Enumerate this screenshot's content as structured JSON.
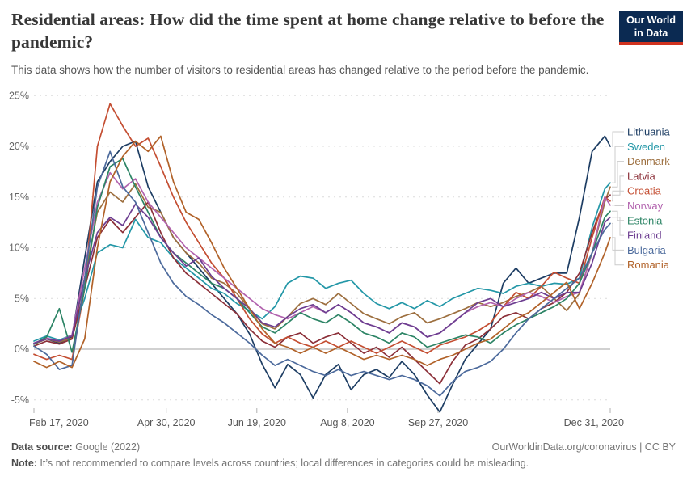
{
  "header": {
    "title": "Residential areas: How did the time spent at home change relative to before the pandemic?",
    "subtitle": "This data shows how the number of visitors to residential areas has changed relative to the period before the pandemic.",
    "logo_line1": "Our World",
    "logo_line2": "in Data",
    "logo_bg_color": "#0b2a52",
    "logo_stripe_color": "#d0321f"
  },
  "chart_data": {
    "type": "line",
    "title": "Residential areas: How did the time spent at home change relative to before the pandemic?",
    "xlabel": "",
    "ylabel": "",
    "y_unit": "%",
    "ylim": [
      -7,
      26
    ],
    "grid": "dashed horizontal gridlines, solid zero line",
    "legend_position": "right, ordered by final value, colored text with gray connector elbows",
    "y_ticks": [
      -5,
      0,
      5,
      10,
      15,
      20,
      25
    ],
    "x_ticks": [
      {
        "label": "Feb 17, 2020",
        "day": 0,
        "align": "start"
      },
      {
        "label": "Apr 30, 2020",
        "day": 73,
        "align": "middle"
      },
      {
        "label": "Jun 19, 2020",
        "day": 123,
        "align": "middle"
      },
      {
        "label": "Aug 8, 2020",
        "day": 173,
        "align": "middle"
      },
      {
        "label": "Sep 27, 2020",
        "day": 223,
        "align": "middle"
      },
      {
        "label": "Dec 31, 2020",
        "day": 318,
        "align": "end"
      }
    ],
    "x_days_since_feb17_2020": [
      0,
      7,
      14,
      21,
      28,
      35,
      42,
      49,
      56,
      63,
      70,
      77,
      84,
      91,
      98,
      105,
      112,
      119,
      126,
      133,
      140,
      147,
      154,
      161,
      168,
      175,
      182,
      189,
      196,
      203,
      210,
      217,
      224,
      231,
      238,
      245,
      252,
      259,
      266,
      273,
      280,
      287,
      294,
      301,
      308,
      315,
      318
    ],
    "series": [
      {
        "name": "Lithuania",
        "color": "#1D3D63",
        "values": [
          0.5,
          1.0,
          0.6,
          1.2,
          9.0,
          16.5,
          18.5,
          20.0,
          20.5,
          16.0,
          13.5,
          11.0,
          9.5,
          8.0,
          6.5,
          5.0,
          3.5,
          1.5,
          -1.5,
          -3.8,
          -1.5,
          -2.5,
          -4.8,
          -2.5,
          -1.5,
          -4.0,
          -2.5,
          -2.0,
          -2.8,
          -1.2,
          -2.5,
          -4.5,
          -6.2,
          -3.5,
          -1.0,
          0.5,
          2.0,
          6.5,
          8.0,
          6.5,
          7.0,
          7.5,
          7.5,
          13.0,
          19.5,
          21.0,
          20.0
        ]
      },
      {
        "name": "Sweden",
        "color": "#2397A7",
        "values": [
          0.8,
          1.3,
          0.9,
          1.4,
          5.0,
          9.5,
          10.3,
          10.0,
          12.8,
          11.0,
          10.5,
          9.0,
          8.0,
          7.0,
          6.0,
          5.5,
          4.5,
          3.8,
          3.0,
          4.2,
          6.5,
          7.2,
          7.0,
          6.0,
          6.5,
          6.8,
          5.5,
          4.5,
          4.0,
          4.6,
          4.0,
          4.8,
          4.2,
          5.0,
          5.5,
          6.0,
          5.8,
          5.5,
          6.2,
          6.5,
          6.2,
          6.5,
          6.4,
          7.0,
          12.0,
          15.8,
          16.4
        ]
      },
      {
        "name": "Denmark",
        "color": "#9D6F3F",
        "values": [
          0.5,
          1.0,
          0.7,
          1.1,
          7.0,
          13.5,
          15.5,
          14.5,
          16.3,
          14.0,
          13.5,
          11.0,
          9.5,
          8.5,
          7.0,
          6.5,
          5.5,
          4.0,
          2.5,
          2.0,
          3.2,
          4.5,
          5.0,
          4.4,
          5.5,
          4.5,
          3.5,
          3.0,
          2.5,
          3.2,
          3.6,
          2.6,
          3.0,
          3.5,
          4.0,
          4.6,
          4.2,
          4.6,
          5.2,
          5.6,
          6.2,
          5.0,
          3.8,
          5.5,
          9.5,
          14.5,
          16.0
        ]
      },
      {
        "name": "Latvia",
        "color": "#8C3039",
        "values": [
          0.3,
          0.8,
          0.5,
          1.0,
          6.0,
          11.0,
          12.8,
          11.5,
          13.0,
          14.5,
          11.5,
          9.0,
          7.5,
          6.5,
          5.5,
          4.5,
          3.5,
          2.0,
          0.8,
          0.2,
          1.2,
          1.6,
          0.6,
          1.2,
          1.6,
          0.6,
          -0.4,
          0.2,
          -0.8,
          0.2,
          -1.0,
          -2.2,
          -3.4,
          -1.2,
          0.4,
          1.0,
          2.0,
          3.2,
          3.6,
          3.0,
          4.0,
          4.6,
          5.6,
          7.5,
          11.5,
          14.8,
          15.2
        ]
      },
      {
        "name": "Croatia",
        "color": "#C44E32",
        "values": [
          -0.5,
          -1.0,
          -0.6,
          -1.0,
          6.0,
          20.0,
          24.2,
          22.0,
          20.0,
          20.8,
          18.0,
          15.0,
          12.5,
          10.5,
          8.5,
          7.0,
          5.0,
          3.0,
          1.5,
          0.6,
          1.2,
          0.6,
          0.2,
          0.8,
          0.2,
          0.8,
          0.2,
          -0.4,
          0.2,
          0.8,
          0.2,
          -0.4,
          0.4,
          0.8,
          1.2,
          1.8,
          2.6,
          4.2,
          5.6,
          5.0,
          6.2,
          7.6,
          7.0,
          6.5,
          11.0,
          15.0,
          14.6
        ]
      },
      {
        "name": "Norway",
        "color": "#B263AE",
        "values": [
          0.6,
          1.1,
          0.8,
          1.4,
          8.0,
          14.5,
          17.4,
          15.8,
          16.8,
          14.5,
          13.0,
          11.5,
          10.0,
          9.0,
          8.0,
          7.0,
          6.0,
          5.0,
          4.0,
          3.4,
          3.0,
          3.6,
          4.2,
          3.6,
          4.4,
          3.6,
          2.6,
          2.2,
          1.6,
          2.6,
          2.2,
          1.2,
          1.6,
          2.6,
          3.6,
          4.2,
          4.6,
          4.2,
          5.0,
          5.6,
          5.2,
          4.6,
          5.2,
          5.6,
          9.5,
          15.0,
          14.2
        ]
      },
      {
        "name": "Estonia",
        "color": "#2C8465",
        "values": [
          0.5,
          1.2,
          4.0,
          -0.3,
          6.0,
          14.0,
          18.0,
          18.8,
          16.0,
          13.5,
          11.0,
          9.5,
          8.5,
          7.5,
          6.5,
          6.0,
          5.0,
          3.6,
          2.2,
          1.6,
          2.6,
          3.6,
          3.0,
          2.6,
          3.4,
          2.6,
          1.6,
          1.2,
          0.6,
          1.6,
          1.2,
          0.2,
          0.6,
          1.0,
          1.4,
          1.2,
          0.6,
          1.6,
          2.4,
          3.0,
          3.6,
          4.2,
          5.0,
          6.5,
          9.5,
          13.0,
          13.6
        ]
      },
      {
        "name": "Finland",
        "color": "#6D3E91",
        "values": [
          0.6,
          1.0,
          0.8,
          1.3,
          7.0,
          11.5,
          13.0,
          12.2,
          14.3,
          13.0,
          11.0,
          9.5,
          8.2,
          9.0,
          7.2,
          6.0,
          5.0,
          4.0,
          2.6,
          2.2,
          3.2,
          4.0,
          4.4,
          3.6,
          4.4,
          3.6,
          2.6,
          2.2,
          1.6,
          2.6,
          2.2,
          1.2,
          1.6,
          2.6,
          3.6,
          4.6,
          5.0,
          4.2,
          4.6,
          5.0,
          5.6,
          5.0,
          5.6,
          5.6,
          8.5,
          12.5,
          13.0
        ]
      },
      {
        "name": "Bulgaria",
        "color": "#4C6A9C",
        "values": [
          0.3,
          -0.5,
          -2.0,
          -1.6,
          7.0,
          16.0,
          19.5,
          16.0,
          14.5,
          11.5,
          8.5,
          6.5,
          5.2,
          4.4,
          3.4,
          2.6,
          1.6,
          0.6,
          -0.6,
          -1.6,
          -1.0,
          -1.6,
          -2.2,
          -2.6,
          -2.0,
          -2.6,
          -2.2,
          -2.6,
          -3.0,
          -2.6,
          -3.0,
          -3.6,
          -4.6,
          -3.2,
          -2.2,
          -1.8,
          -1.2,
          0.0,
          1.6,
          3.0,
          4.0,
          5.0,
          6.0,
          7.0,
          9.5,
          11.8,
          12.4
        ]
      },
      {
        "name": "Romania",
        "color": "#B16229",
        "values": [
          -1.2,
          -1.8,
          -1.2,
          -1.8,
          1.0,
          10.0,
          16.5,
          19.0,
          20.5,
          19.5,
          21.0,
          16.5,
          13.5,
          12.8,
          10.5,
          8.0,
          6.0,
          4.0,
          2.0,
          0.6,
          0.2,
          -0.4,
          0.2,
          -0.4,
          0.2,
          -0.4,
          -1.0,
          -0.6,
          -1.0,
          -0.6,
          -1.0,
          -1.6,
          -1.0,
          -0.6,
          0.0,
          0.6,
          1.0,
          2.0,
          3.0,
          3.6,
          4.6,
          5.6,
          6.6,
          4.0,
          6.5,
          9.5,
          11.0
        ]
      }
    ]
  },
  "footer": {
    "data_source_label": "Data source:",
    "data_source_value": " Google (2022)",
    "attribution": "OurWorldinData.org/coronavirus | CC BY",
    "note_label": "Note:",
    "note_value": " It’s not recommended to compare levels across countries; local differences in categories could be misleading."
  }
}
